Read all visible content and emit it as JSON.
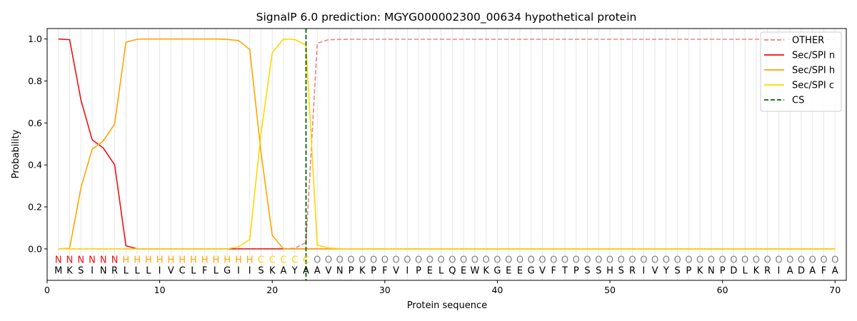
{
  "chart_data": {
    "type": "line",
    "title": "SignalP 6.0 prediction: MGYG000002300_00634 hypothetical protein",
    "xlabel": "Protein sequence",
    "ylabel": "Probability",
    "xlim": [
      0,
      71
    ],
    "ylim": [
      -0.15,
      1.05
    ],
    "xticks": [
      "0",
      "10",
      "20",
      "30",
      "40",
      "50",
      "60",
      "70"
    ],
    "yticks": [
      "0.0",
      "0.2",
      "0.4",
      "0.6",
      "0.8",
      "1.0"
    ],
    "grid": "vertical lines at each residue",
    "legend_position": "top-right",
    "sequence": "MKSINRLLLIVCLFLGIISKAYAAVNPKPFVIPELQEWKGEEGVFTPSSHSRIVYSPKNPDLKRIADAFA",
    "labels": "NNNNNNHHHHHHHHHHHHCCCCCOOOOOOOOOOOOOOOOOOOOOOOOOOOOOOOOOOOOOOOOOOOOOOO",
    "label_colors": {
      "N": "#ee1111",
      "H": "#ffa500",
      "C": "#ffd700",
      "O": "#808080"
    },
    "cleavage_site": 23,
    "series": [
      {
        "name": "OTHER",
        "color": "#f08080",
        "dash": "dashed",
        "values": [
          0,
          0,
          0,
          0,
          0,
          0,
          0,
          0,
          0,
          0,
          0,
          0,
          0,
          0,
          0,
          0,
          0,
          0,
          0,
          0,
          0,
          0.003,
          0.03,
          0.98,
          0.997,
          0.998,
          0.999,
          0.999,
          0.999,
          0.999,
          0.999,
          0.999,
          0.999,
          0.999,
          0.999,
          0.999,
          0.999,
          0.999,
          0.999,
          0.999,
          0.999,
          0.999,
          0.999,
          0.999,
          0.999,
          0.999,
          0.999,
          0.999,
          0.999,
          0.999,
          0.999,
          0.999,
          0.999,
          0.999,
          0.999,
          0.999,
          0.999,
          0.999,
          0.999,
          0.999,
          0.999,
          0.999,
          0.999,
          0.999,
          0.999,
          0.999,
          0.999,
          0.999,
          0.999,
          0.999
        ]
      },
      {
        "name": "Sec/SPI n",
        "color": "#ee1111",
        "dash": "solid",
        "values": [
          1.0,
          0.997,
          0.71,
          0.52,
          0.48,
          0.4,
          0.015,
          0.0,
          0,
          0,
          0,
          0,
          0,
          0,
          0,
          0,
          0,
          0,
          0,
          0,
          0,
          0,
          0,
          0,
          0,
          0,
          0,
          0,
          0,
          0,
          0,
          0,
          0,
          0,
          0,
          0,
          0,
          0,
          0,
          0,
          0,
          0,
          0,
          0,
          0,
          0,
          0,
          0,
          0,
          0,
          0,
          0,
          0,
          0,
          0,
          0,
          0,
          0,
          0,
          0,
          0,
          0,
          0,
          0,
          0,
          0,
          0,
          0,
          0,
          0
        ]
      },
      {
        "name": "Sec/SPI h",
        "color": "#ffa500",
        "dash": "solid",
        "values": [
          0.0,
          0.003,
          0.29,
          0.475,
          0.515,
          0.595,
          0.985,
          0.999,
          1.0,
          1.0,
          1.0,
          1.0,
          1.0,
          1.0,
          1.0,
          0.998,
          0.993,
          0.95,
          0.46,
          0.065,
          0.0,
          0.0,
          0.0,
          0,
          0,
          0,
          0,
          0,
          0,
          0,
          0,
          0,
          0,
          0,
          0,
          0,
          0,
          0,
          0,
          0,
          0,
          0,
          0,
          0,
          0,
          0,
          0,
          0,
          0,
          0,
          0,
          0,
          0,
          0,
          0,
          0,
          0,
          0,
          0,
          0,
          0,
          0,
          0,
          0,
          0,
          0,
          0,
          0,
          0,
          0
        ]
      },
      {
        "name": "Sec/SPI c",
        "color": "#ffd700",
        "dash": "solid",
        "values": [
          0,
          0,
          0,
          0,
          0,
          0,
          0,
          0,
          0,
          0,
          0,
          0,
          0,
          0,
          0,
          0,
          0.01,
          0.045,
          0.55,
          0.935,
          1.0,
          0.998,
          0.97,
          0.018,
          0.004,
          0.001,
          0,
          0,
          0,
          0,
          0,
          0,
          0,
          0,
          0,
          0,
          0,
          0,
          0,
          0,
          0,
          0,
          0,
          0,
          0,
          0,
          0,
          0,
          0,
          0,
          0,
          0,
          0,
          0,
          0,
          0,
          0,
          0,
          0,
          0,
          0,
          0,
          0,
          0,
          0,
          0,
          0,
          0,
          0,
          0
        ]
      }
    ],
    "cs_legend": {
      "name": "CS",
      "color": "#006400",
      "dash": "dashed"
    }
  }
}
